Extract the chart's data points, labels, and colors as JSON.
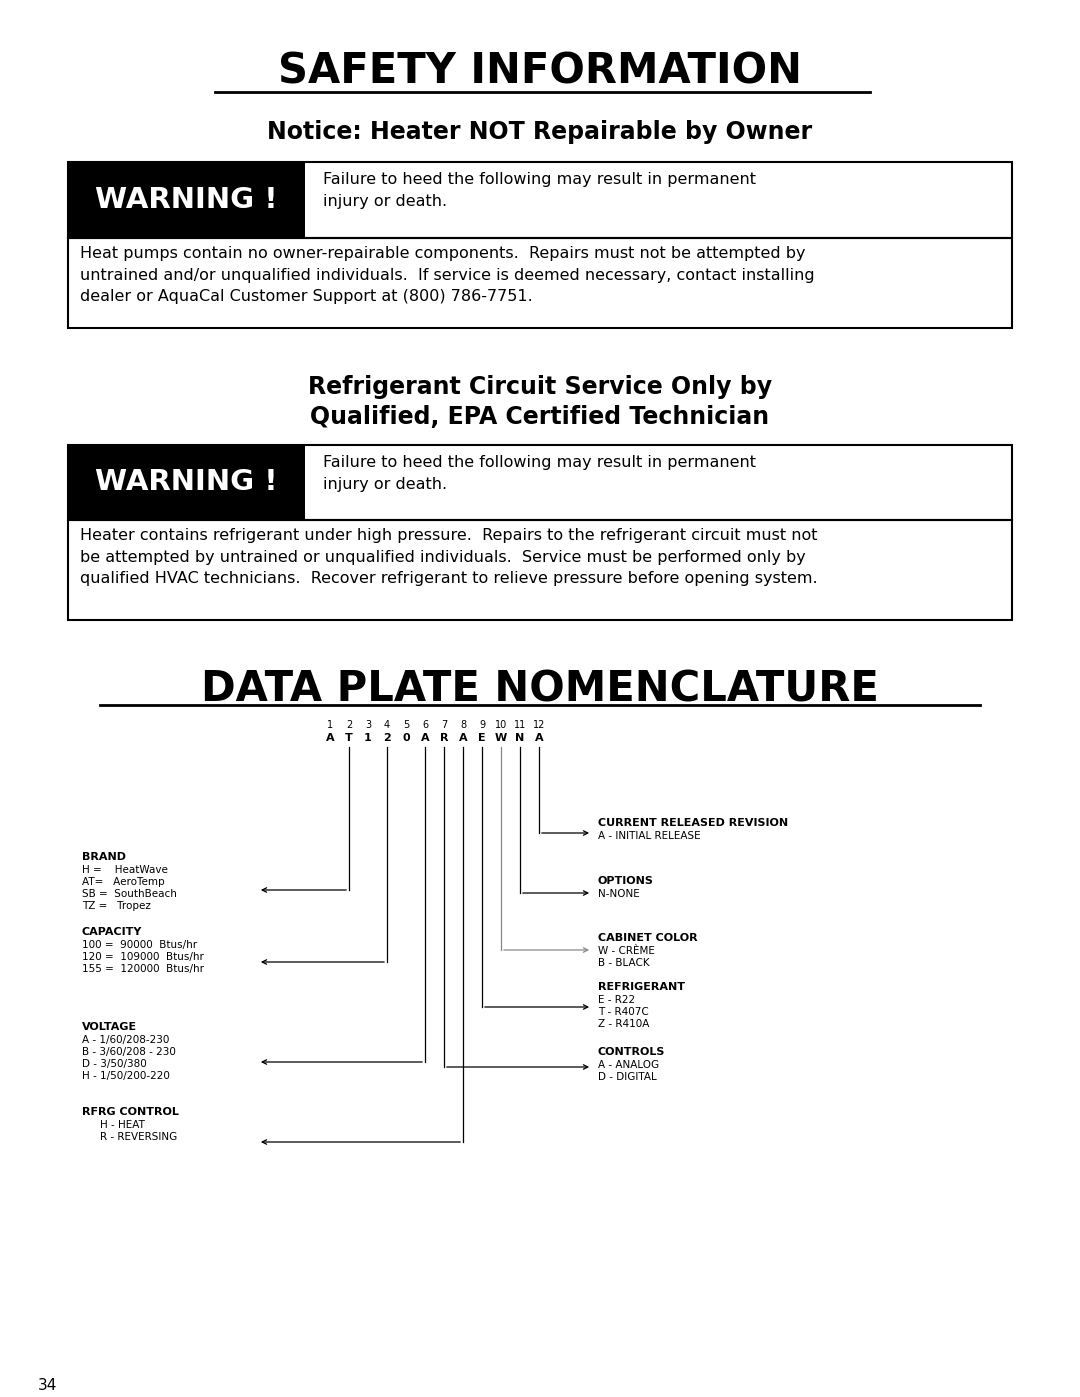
{
  "bg_color": "#ffffff",
  "title": "SAFETY INFORMATION",
  "notice1_heading": "Notice: Heater NOT Repairable by Owner",
  "warning_desc": "Failure to heed the following may result in permanent\ninjury or death.",
  "warning_body1": "Heat pumps contain no owner-repairable components.  Repairs must not be attempted by\nuntrained and/or unqualified individuals.  If service is deemed necessary, contact installing\ndealer or AquaCal Customer Support at (800) 786-7751.",
  "notice2_heading_line1": "Refrigerant Circuit Service Only by",
  "notice2_heading_line2": "Qualified, EPA Certified Technician",
  "warning_body2": "Heater contains refrigerant under high pressure.  Repairs to the refrigerant circuit must not\nbe attempted by untrained or unqualified individuals.  Service must be performed only by\nqualified HVAC technicians.  Recover refrigerant to relieve pressure before opening system.",
  "dpn_title": "DATA PLATE NOMENCLATURE",
  "page_number": "34",
  "col_nums": [
    "1",
    "2",
    "3",
    "4",
    "5",
    "6",
    "7",
    "8",
    "9",
    "10",
    "11",
    "12"
  ],
  "col_letters": [
    "A",
    "T",
    "1",
    "2",
    "0",
    "A",
    "R",
    "A",
    "E",
    "W",
    "N",
    "A"
  ]
}
